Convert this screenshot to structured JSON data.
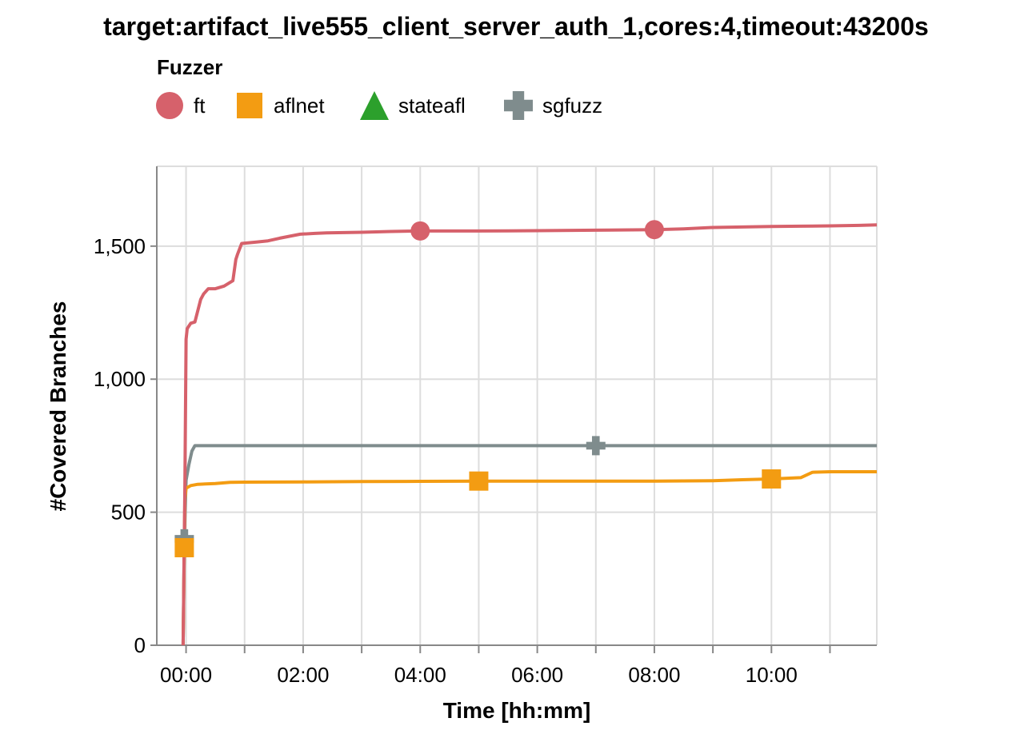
{
  "chart_data": {
    "type": "line",
    "title": "target:artifact_live555_client_server_auth_1,cores:4,timeout:43200s",
    "legend_title": "Fuzzer",
    "legend_position": "top-left",
    "xlabel": "Time [hh:mm]",
    "ylabel": "#Covered Branches",
    "xlim": [
      -0.5,
      11.8
    ],
    "ylim": [
      0,
      1800
    ],
    "grid": true,
    "x_unit": "hours",
    "x_ticks": [
      0,
      2,
      4,
      6,
      8,
      10
    ],
    "x_tick_labels": [
      "00:00",
      "02:00",
      "04:00",
      "06:00",
      "08:00",
      "10:00"
    ],
    "x_minor_ticks": [
      1,
      3,
      5,
      7,
      9,
      11
    ],
    "y_ticks": [
      0,
      500,
      1000,
      1500
    ],
    "y_tick_labels": [
      "0",
      "500",
      "1,000",
      "1,500"
    ],
    "series": [
      {
        "name": "ft",
        "color": "#d6616b",
        "marker": "circle",
        "marker_x": [
          4,
          8
        ],
        "x": [
          -0.05,
          -0.02,
          0.0,
          0.02,
          0.08,
          0.15,
          0.25,
          0.3,
          0.38,
          0.5,
          0.65,
          0.8,
          0.85,
          0.88,
          0.95,
          1.2,
          1.4,
          1.6,
          1.95,
          2.2,
          2.4,
          3.0,
          3.5,
          4.0,
          5.0,
          6.0,
          7.0,
          8.0,
          8.5,
          9.0,
          9.5,
          10.0,
          10.5,
          11.0,
          11.5,
          11.8
        ],
        "y": [
          0,
          600,
          1150,
          1190,
          1210,
          1215,
          1300,
          1320,
          1340,
          1340,
          1350,
          1370,
          1450,
          1470,
          1510,
          1515,
          1520,
          1530,
          1545,
          1548,
          1550,
          1552,
          1555,
          1557,
          1557,
          1558,
          1560,
          1562,
          1565,
          1570,
          1572,
          1574,
          1575,
          1576,
          1578,
          1580
        ]
      },
      {
        "name": "aflnet",
        "color": "#f39c12",
        "marker": "square",
        "marker_x": [
          -0.03,
          5,
          10
        ],
        "x": [
          -0.05,
          -0.02,
          0.0,
          0.08,
          0.2,
          0.5,
          0.75,
          1.0,
          2.0,
          3.0,
          4.0,
          5.0,
          6.0,
          7.0,
          8.0,
          9.0,
          9.5,
          10.0,
          10.5,
          10.7,
          11.0,
          11.8
        ],
        "y": [
          0,
          550,
          590,
          600,
          605,
          608,
          612,
          613,
          614,
          615,
          616,
          617,
          617,
          617,
          617,
          618,
          622,
          625,
          630,
          650,
          652,
          652
        ]
      },
      {
        "name": "stateafl",
        "color": "#2ca02c",
        "marker": "triangle",
        "marker_x": [],
        "x": [],
        "y": []
      },
      {
        "name": "sgfuzz",
        "color": "#7f8c8d",
        "marker": "cross",
        "marker_x": [
          -0.03,
          7
        ],
        "x": [
          -0.05,
          -0.03,
          0.0,
          0.05,
          0.1,
          0.15,
          0.5,
          1.0,
          4.0,
          7.0,
          11.8
        ],
        "y": [
          0,
          400,
          620,
          680,
          730,
          750,
          750,
          750,
          750,
          750,
          750
        ]
      }
    ]
  }
}
